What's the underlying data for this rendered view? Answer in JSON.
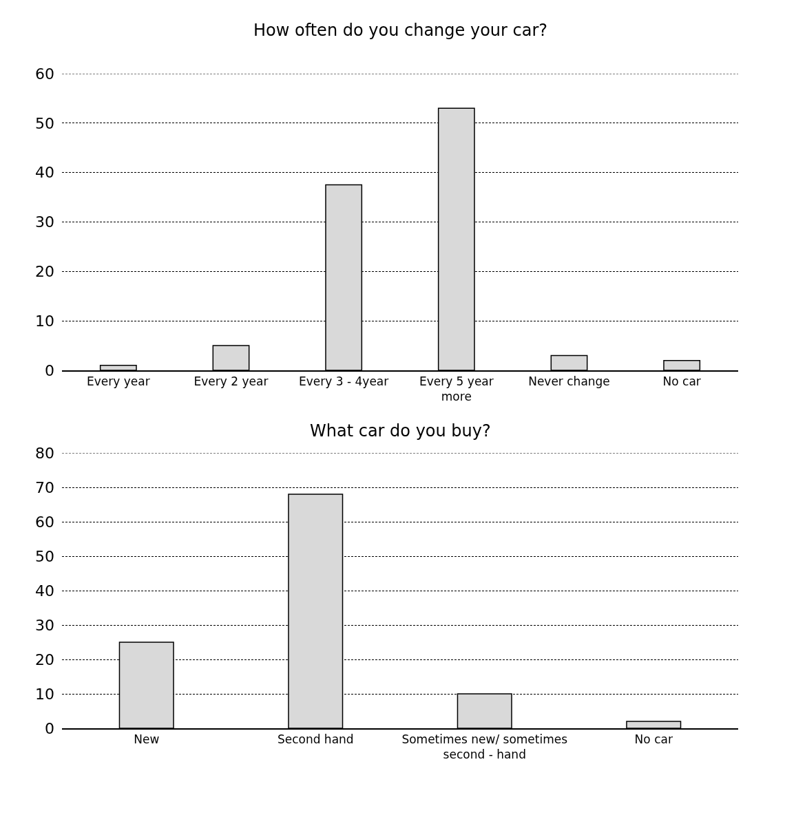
{
  "chart_data": [
    {
      "type": "bar",
      "title": "How often do you change your car?",
      "categories": [
        "Every year",
        "Every 2 year",
        "Every 3 - 4year",
        "Every 5 year more",
        "Never change",
        "No car"
      ],
      "values": [
        1,
        5,
        37.5,
        53,
        3,
        2
      ],
      "color": "#d9d9d9",
      "ylim": [
        0,
        60
      ],
      "yticks": [
        0,
        10,
        20,
        30,
        40,
        50,
        60
      ],
      "grid": "y"
    },
    {
      "type": "bar",
      "title": "What car do you buy?",
      "categories": [
        "New",
        "Second hand",
        "Sometimes new/ sometimes second - hand",
        "No car"
      ],
      "values": [
        25,
        68,
        10,
        2
      ],
      "color": "#d9d9d9",
      "ylim": [
        0,
        80
      ],
      "yticks": [
        0,
        10,
        20,
        30,
        40,
        50,
        60,
        70,
        80
      ],
      "grid": "y"
    }
  ]
}
